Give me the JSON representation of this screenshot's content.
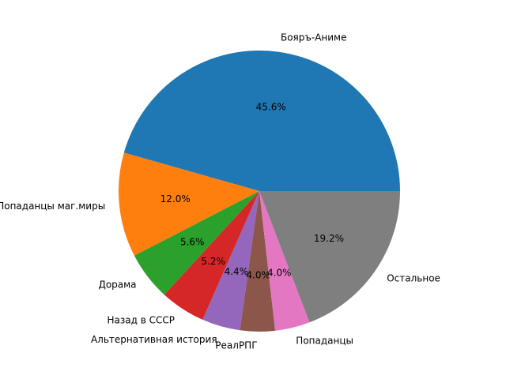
{
  "chart_data": {
    "type": "pie",
    "categories": [
      "Бояръ-Аниме",
      "Попаданцы маг.миры",
      "Дорама",
      "Назад в СССР",
      "Альтернативная история",
      "РеалРПГ",
      "Попаданцы",
      "Остальное"
    ],
    "values": [
      45.6,
      12.0,
      5.6,
      5.2,
      4.4,
      4.0,
      4.0,
      19.2
    ],
    "value_labels": [
      "45.6%",
      "12.0%",
      "5.6%",
      "5.2%",
      "4.4%",
      "4.0%",
      "4.0%",
      "19.2%"
    ],
    "colors": [
      "#1f77b4",
      "#ff7f0e",
      "#2ca02c",
      "#d62728",
      "#9467bd",
      "#8c564b",
      "#e377c2",
      "#7f7f7f"
    ]
  }
}
